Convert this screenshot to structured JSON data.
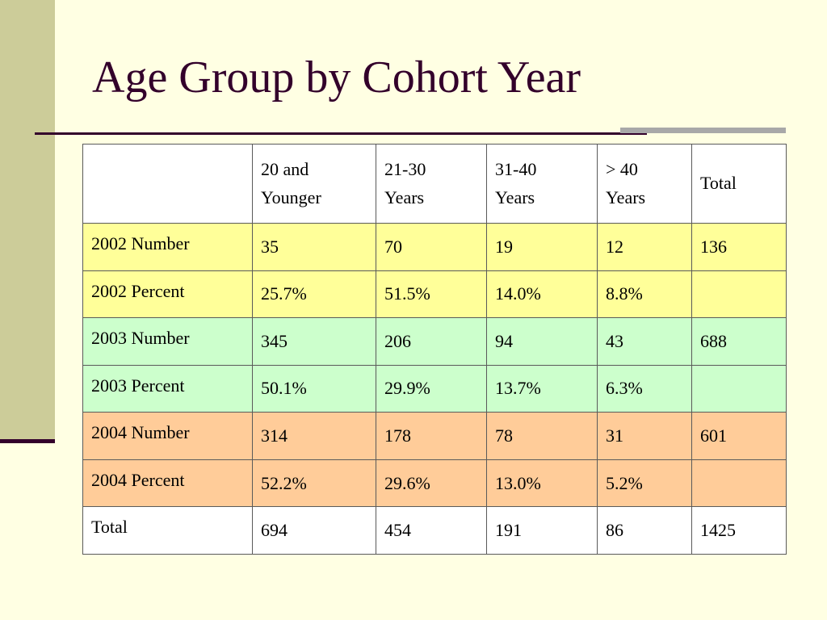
{
  "title": "Age Group by Cohort Year",
  "colors": {
    "background": "#FFFFE3",
    "accent": "#33002B",
    "sidebar": "#CCCC99",
    "row_2002": "#FFFF99",
    "row_2003": "#CCFFCC",
    "row_2004": "#FFCC99"
  },
  "table": {
    "columns": [
      "",
      "20 and Younger",
      "21-30 Years",
      "31-40 Years",
      "> 40 Years",
      "Total"
    ],
    "rows": [
      {
        "label": "2002 Number",
        "cells": [
          "35",
          "70",
          "19",
          "12",
          "136"
        ]
      },
      {
        "label": "2002 Percent",
        "cells": [
          "25.7%",
          "51.5%",
          "14.0%",
          "8.8%",
          ""
        ]
      },
      {
        "label": "2003 Number",
        "cells": [
          "345",
          "206",
          "94",
          "43",
          "688"
        ]
      },
      {
        "label": "2003 Percent",
        "cells": [
          "50.1%",
          "29.9%",
          "13.7%",
          "6.3%",
          ""
        ]
      },
      {
        "label": "2004 Number",
        "cells": [
          "314",
          "178",
          "78",
          "31",
          "601"
        ]
      },
      {
        "label": "2004 Percent",
        "cells": [
          "52.2%",
          "29.6%",
          "13.0%",
          "5.2%",
          ""
        ]
      },
      {
        "label": "Total",
        "cells": [
          "694",
          "454",
          "191",
          "86",
          "1425"
        ]
      }
    ]
  }
}
